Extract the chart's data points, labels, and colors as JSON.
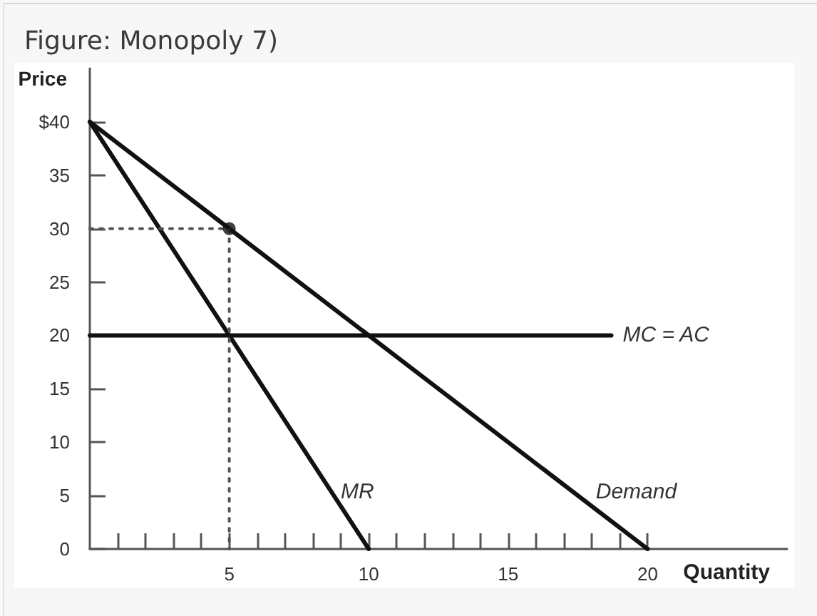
{
  "chart_data": {
    "type": "line",
    "title": "Figure: Monopoly 7)",
    "xlabel": "Quantity",
    "ylabel": "Price",
    "xlim": [
      0,
      25
    ],
    "ylim": [
      0,
      45
    ],
    "xticks": [
      {
        "value": 1,
        "label": null
      },
      {
        "value": 2,
        "label": null
      },
      {
        "value": 3,
        "label": null
      },
      {
        "value": 4,
        "label": null
      },
      5,
      {
        "value": 6,
        "label": null
      },
      {
        "value": 7,
        "label": null
      },
      {
        "value": 8,
        "label": null
      },
      {
        "value": 9,
        "label": null
      },
      10,
      {
        "value": 11,
        "label": null
      },
      {
        "value": 12,
        "label": null
      },
      {
        "value": 13,
        "label": null
      },
      {
        "value": 14,
        "label": null
      },
      15,
      {
        "value": 16,
        "label": null
      },
      {
        "value": 17,
        "label": null
      },
      {
        "value": 18,
        "label": null
      },
      {
        "value": 19,
        "label": null
      },
      20
    ],
    "yticks": [
      0,
      5,
      10,
      15,
      20,
      25,
      30,
      35,
      {
        "value": 40,
        "label": "$40"
      }
    ],
    "marker": "none",
    "line_style": "solid",
    "series": [
      {
        "name": "MR",
        "color": "#111111",
        "x": [
          0,
          10
        ],
        "values": [
          40,
          0
        ]
      },
      {
        "name": "Demand",
        "color": "#111111",
        "x": [
          0,
          20
        ],
        "values": [
          40,
          0
        ]
      },
      {
        "name": "MC = AC",
        "color": "#111111",
        "x": [
          0,
          18.7
        ],
        "values": [
          20,
          20
        ]
      },
      {
        "color": "#555555",
        "x": [
          0,
          5,
          5
        ],
        "values": [
          30,
          30,
          0
        ],
        "line_style": "dotted"
      },
      {
        "type": "scatter",
        "color": "#111111",
        "x": [
          5
        ],
        "values": [
          30
        ],
        "marker": "circle"
      }
    ]
  }
}
